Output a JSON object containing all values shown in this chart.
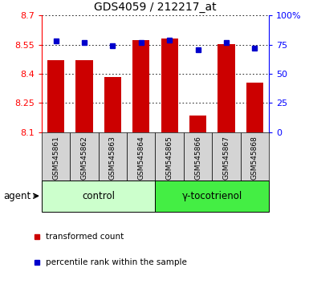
{
  "title": "GDS4059 / 212217_at",
  "samples": [
    "GSM545861",
    "GSM545862",
    "GSM545863",
    "GSM545864",
    "GSM545865",
    "GSM545866",
    "GSM545867",
    "GSM545868"
  ],
  "red_values": [
    8.47,
    8.47,
    8.385,
    8.575,
    8.58,
    8.185,
    8.555,
    8.355
  ],
  "blue_values": [
    78,
    77,
    74,
    77,
    79,
    71,
    77,
    72
  ],
  "ylim_left": [
    8.1,
    8.7
  ],
  "ylim_right": [
    0,
    100
  ],
  "yticks_left": [
    8.1,
    8.25,
    8.4,
    8.55,
    8.7
  ],
  "yticks_right": [
    0,
    25,
    50,
    75,
    100
  ],
  "ytick_labels_right": [
    "0",
    "25",
    "50",
    "75",
    "100%"
  ],
  "bar_color": "#cc0000",
  "dot_color": "#0000cc",
  "grid_color": "black",
  "control_samples": 4,
  "group_labels": [
    "control",
    "γ-tocotrienol"
  ],
  "group_colors_light": "#ccffcc",
  "group_colors_dark": "#44ee44",
  "xlabel_label": "agent",
  "legend_items": [
    "transformed count",
    "percentile rank within the sample"
  ],
  "bar_width": 0.6,
  "title_fontsize": 10,
  "tick_fontsize": 8,
  "label_fontsize": 8.5,
  "sample_label_fontsize": 6.5,
  "group_label_fontsize": 8.5
}
